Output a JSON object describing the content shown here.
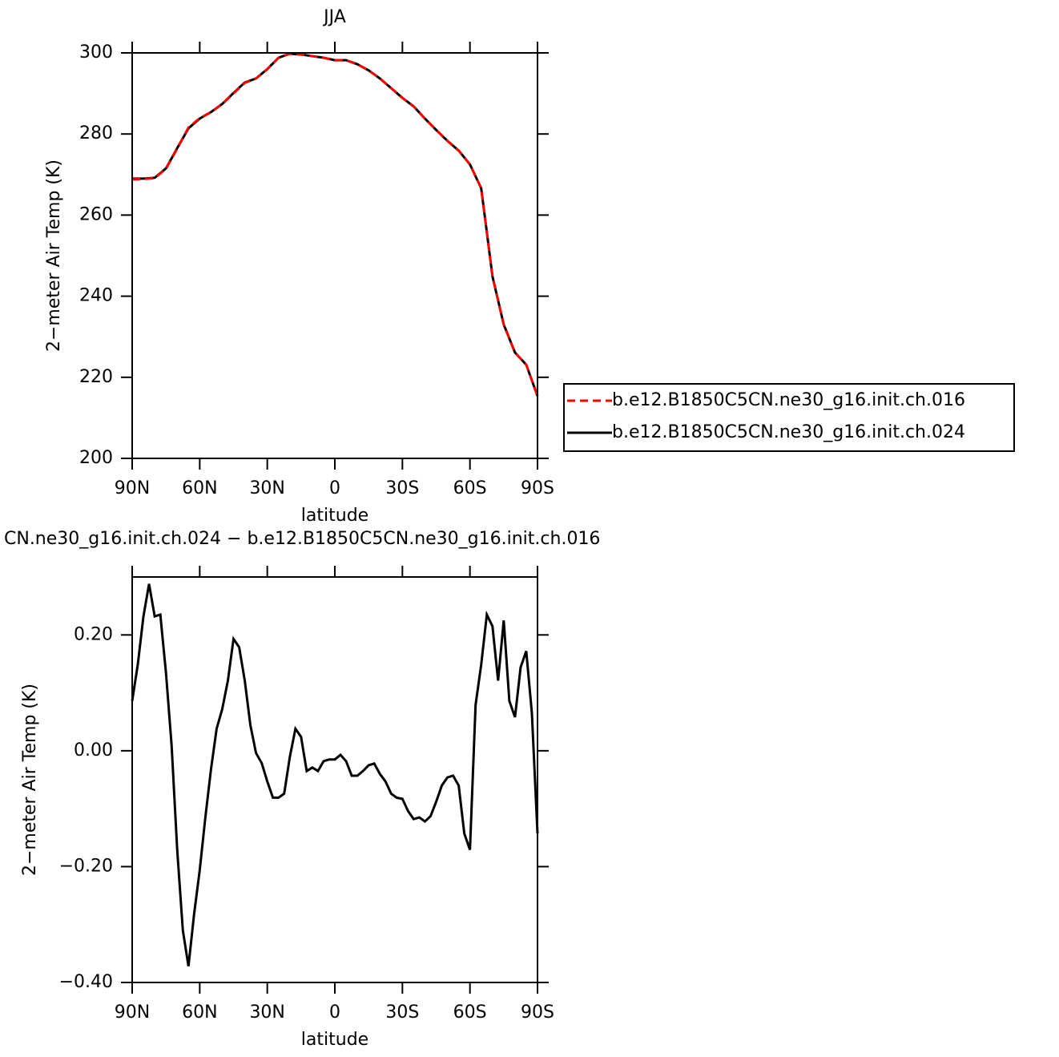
{
  "chart_data": [
    {
      "type": "line",
      "title": "JJA",
      "x_label": "latitude",
      "y_label": "2−meter Air Temp (K)",
      "x": [
        90,
        85,
        80,
        75,
        70,
        65,
        60,
        55,
        50,
        45,
        40,
        35,
        30,
        25,
        20,
        15,
        10,
        5,
        0,
        -5,
        -10,
        -15,
        -20,
        -25,
        -30,
        -35,
        -40,
        -45,
        -50,
        -55,
        -60,
        -65,
        -70,
        -75,
        -80,
        -85,
        -90
      ],
      "series": [
        {
          "name": "b.e12.B1850C5CN.ne30_g16.init.ch.016",
          "color": "#ff0000",
          "dashed": true,
          "values": [
            268.8,
            268.9,
            269.1,
            271.4,
            276.4,
            281.6,
            283.9,
            285.4,
            287.4,
            290.0,
            292.6,
            293.7,
            296.0,
            298.8,
            299.8,
            299.6,
            299.2,
            298.8,
            298.2,
            298.2,
            297.2,
            295.7,
            293.7,
            291.3,
            288.9,
            286.8,
            283.8,
            281.0,
            278.3,
            275.9,
            272.5,
            266.6,
            244.9,
            233.0,
            226.1,
            223.1,
            215.4
          ]
        },
        {
          "name": "b.e12.B1850C5CN.ne30_g16.init.ch.024",
          "color": "#000000",
          "dashed": false,
          "values": [
            269.0,
            269.0,
            269.2,
            271.5,
            276.5,
            281.4,
            283.8,
            285.4,
            287.4,
            290.1,
            292.7,
            293.7,
            296.0,
            298.8,
            299.8,
            299.6,
            299.2,
            298.8,
            298.2,
            298.2,
            297.2,
            295.7,
            293.7,
            291.3,
            288.9,
            286.8,
            283.8,
            281.0,
            278.3,
            275.9,
            272.5,
            266.6,
            244.9,
            233.0,
            226.1,
            223.1,
            215.4
          ]
        }
      ],
      "xlim": [
        90,
        -90
      ],
      "xticks": [
        {
          "value": 90,
          "label": "90N"
        },
        {
          "value": 60,
          "label": "60N"
        },
        {
          "value": 30,
          "label": "30N"
        },
        0,
        {
          "value": -30,
          "label": "30S"
        },
        {
          "value": -60,
          "label": "60S"
        },
        {
          "value": -90,
          "label": "90S"
        }
      ],
      "ylim": [
        200,
        300
      ],
      "yticks": [
        200,
        220,
        240,
        260,
        280,
        300
      ],
      "legend": "right"
    },
    {
      "type": "line",
      "title": "CN.ne30_g16.init.ch.024 − b.e12.B1850C5CN.ne30_g16.init.ch.016",
      "x_label": "latitude",
      "y_label": "2−meter Air Temp (K)",
      "x": [
        90,
        87.5,
        85,
        82.5,
        80,
        77.5,
        75,
        72.5,
        70,
        67.5,
        65,
        62.5,
        60,
        57.5,
        55,
        52.5,
        50,
        47.5,
        45,
        42.5,
        40,
        37.5,
        35,
        32.5,
        30,
        27.5,
        25,
        22.5,
        20,
        17.5,
        15,
        12.5,
        10,
        7.5,
        5,
        2.5,
        0,
        -2.5,
        -5,
        -7.5,
        -10,
        -12.5,
        -15,
        -17.5,
        -20,
        -22.5,
        -25,
        -27.5,
        -30,
        -32.5,
        -35,
        -37.5,
        -40,
        -42.5,
        -45,
        -47.5,
        -50,
        -52.5,
        -55,
        -57.5,
        -60,
        -62.5,
        -65,
        -67.5,
        -70,
        -72.5,
        -75,
        -77.5,
        -80,
        -82.5,
        -85,
        -87.5,
        -90
      ],
      "series": [
        {
          "color": "#000000",
          "dashed": false,
          "values": [
            0.086,
            0.149,
            0.232,
            0.288,
            0.232,
            0.235,
            0.135,
            0.01,
            -0.171,
            -0.31,
            -0.372,
            -0.282,
            -0.206,
            -0.115,
            -0.032,
            0.038,
            0.072,
            0.121,
            0.193,
            0.179,
            0.121,
            0.044,
            -0.004,
            -0.021,
            -0.053,
            -0.081,
            -0.081,
            -0.074,
            -0.011,
            0.038,
            0.024,
            -0.035,
            -0.029,
            -0.035,
            -0.018,
            -0.015,
            -0.015,
            -0.007,
            -0.018,
            -0.043,
            -0.043,
            -0.035,
            -0.025,
            -0.022,
            -0.04,
            -0.053,
            -0.074,
            -0.081,
            -0.083,
            -0.104,
            -0.118,
            -0.115,
            -0.122,
            -0.113,
            -0.088,
            -0.06,
            -0.046,
            -0.043,
            -0.06,
            -0.143,
            -0.171,
            0.079,
            0.149,
            0.235,
            0.215,
            0.121,
            0.225,
            0.086,
            0.058,
            0.144,
            0.172,
            0.065,
            -0.143
          ]
        }
      ],
      "xlim": [
        90,
        -90
      ],
      "xticks": [
        {
          "value": 90,
          "label": "90N"
        },
        {
          "value": 60,
          "label": "60N"
        },
        {
          "value": 30,
          "label": "30N"
        },
        0,
        {
          "value": -30,
          "label": "30S"
        },
        {
          "value": -60,
          "label": "60S"
        },
        {
          "value": -90,
          "label": "90S"
        }
      ],
      "ylim": [
        -0.4,
        0.3
      ],
      "yticks": [
        {
          "value": -0.4,
          "label": "−0.40"
        },
        {
          "value": -0.2,
          "label": "−0.20"
        },
        {
          "value": 0,
          "label": "0.00"
        },
        {
          "value": 0.2,
          "label": "0.20"
        }
      ]
    }
  ]
}
